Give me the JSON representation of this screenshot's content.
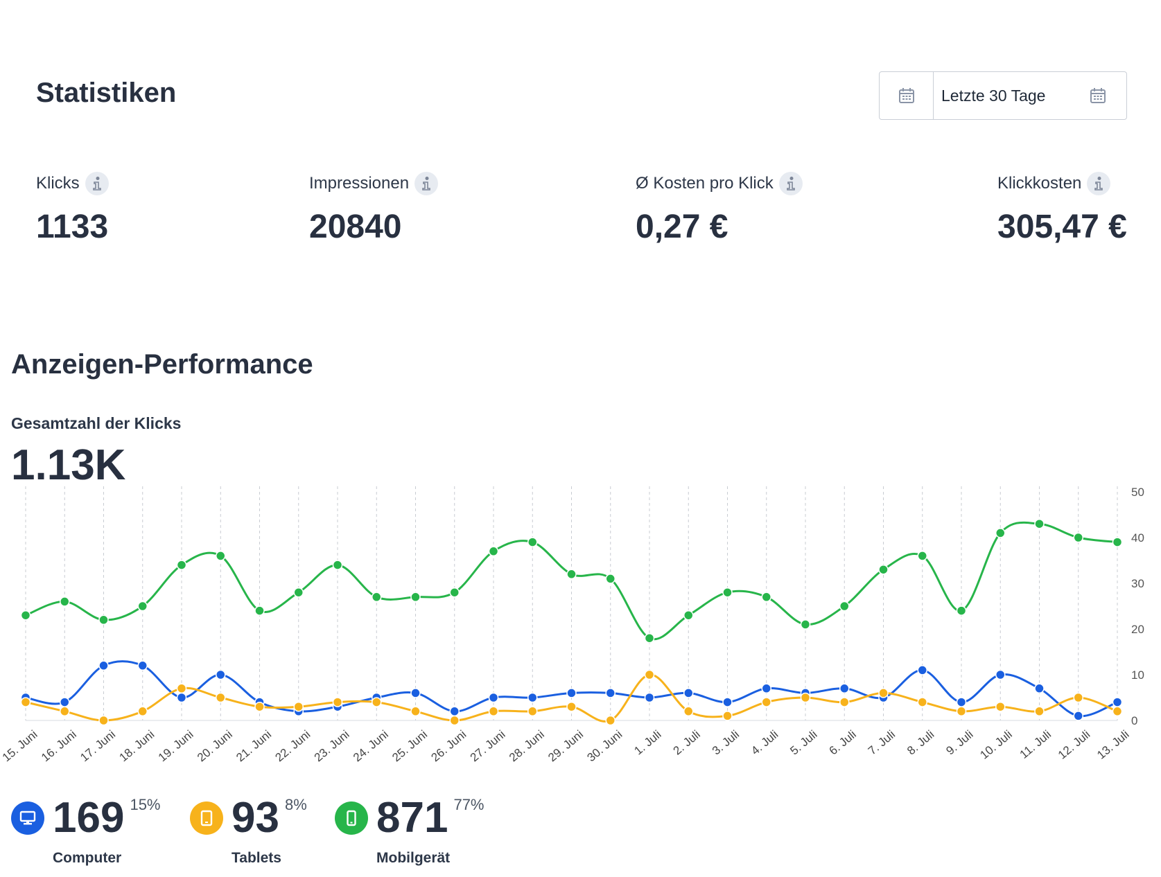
{
  "header": {
    "title": "Statistiken"
  },
  "date_picker": {
    "value": "Letzte 30 Tage",
    "icon": "calendar-icon"
  },
  "stats": [
    {
      "label": "Klicks",
      "value": "1133"
    },
    {
      "label": "Impressionen",
      "value": "20840"
    },
    {
      "label": "Ø Kosten pro Klick",
      "value": "0,27 €"
    },
    {
      "label": "Klickkosten",
      "value": "305,47 €"
    }
  ],
  "performance": {
    "title": "Anzeigen-Performance",
    "total_label": "Gesamtzahl der Klicks",
    "total_value": "1.13K"
  },
  "legend": [
    {
      "name": "Computer",
      "count": "169",
      "percent": "15%",
      "color": "#1a5fe0",
      "icon": "monitor-icon"
    },
    {
      "name": "Tablets",
      "count": "93",
      "percent": "8%",
      "color": "#f7b21b",
      "icon": "tablet-icon"
    },
    {
      "name": "Mobilgerät",
      "count": "871",
      "percent": "77%",
      "color": "#27b54a",
      "icon": "phone-icon"
    }
  ],
  "chart_data": {
    "type": "line",
    "x": [
      "15. Juni",
      "16. Juni",
      "17. Juni",
      "18. Juni",
      "19. Juni",
      "20. Juni",
      "21. Juni",
      "22. Juni",
      "23. Juni",
      "24. Juni",
      "25. Juni",
      "26. Juni",
      "27. Juni",
      "28. Juni",
      "29. Juni",
      "30. Juni",
      "1. Juli",
      "2. Juli",
      "3. Juli",
      "4. Juli",
      "5. Juli",
      "6. Juli",
      "7. Juli",
      "8. Juli",
      "9. Juli",
      "10. Juli",
      "11. Juli",
      "12. Juli",
      "13. Juli"
    ],
    "ylim": [
      0,
      50
    ],
    "yticks": [
      0,
      10,
      20,
      30,
      40,
      50
    ],
    "y_axis_side": "right",
    "grid": "vertical-dashed",
    "series": [
      {
        "color": "#27b54a",
        "values": [
          23,
          26,
          22,
          25,
          34,
          36,
          24,
          28,
          34,
          27,
          27,
          28,
          37,
          39,
          32,
          31,
          18,
          23,
          28,
          27,
          21,
          25,
          33,
          36,
          24,
          41,
          43,
          40,
          39
        ]
      },
      {
        "color": "#1a5fe0",
        "values": [
          5,
          4,
          12,
          12,
          5,
          10,
          4,
          2,
          3,
          5,
          6,
          2,
          5,
          5,
          6,
          6,
          5,
          6,
          4,
          7,
          6,
          7,
          5,
          11,
          4,
          10,
          7,
          1,
          4
        ]
      },
      {
        "color": "#f7b21b",
        "values": [
          4,
          2,
          0,
          2,
          7,
          5,
          3,
          3,
          4,
          4,
          2,
          0,
          2,
          2,
          3,
          0,
          10,
          2,
          1,
          4,
          5,
          4,
          6,
          4,
          2,
          3,
          2,
          5,
          2
        ]
      }
    ]
  }
}
